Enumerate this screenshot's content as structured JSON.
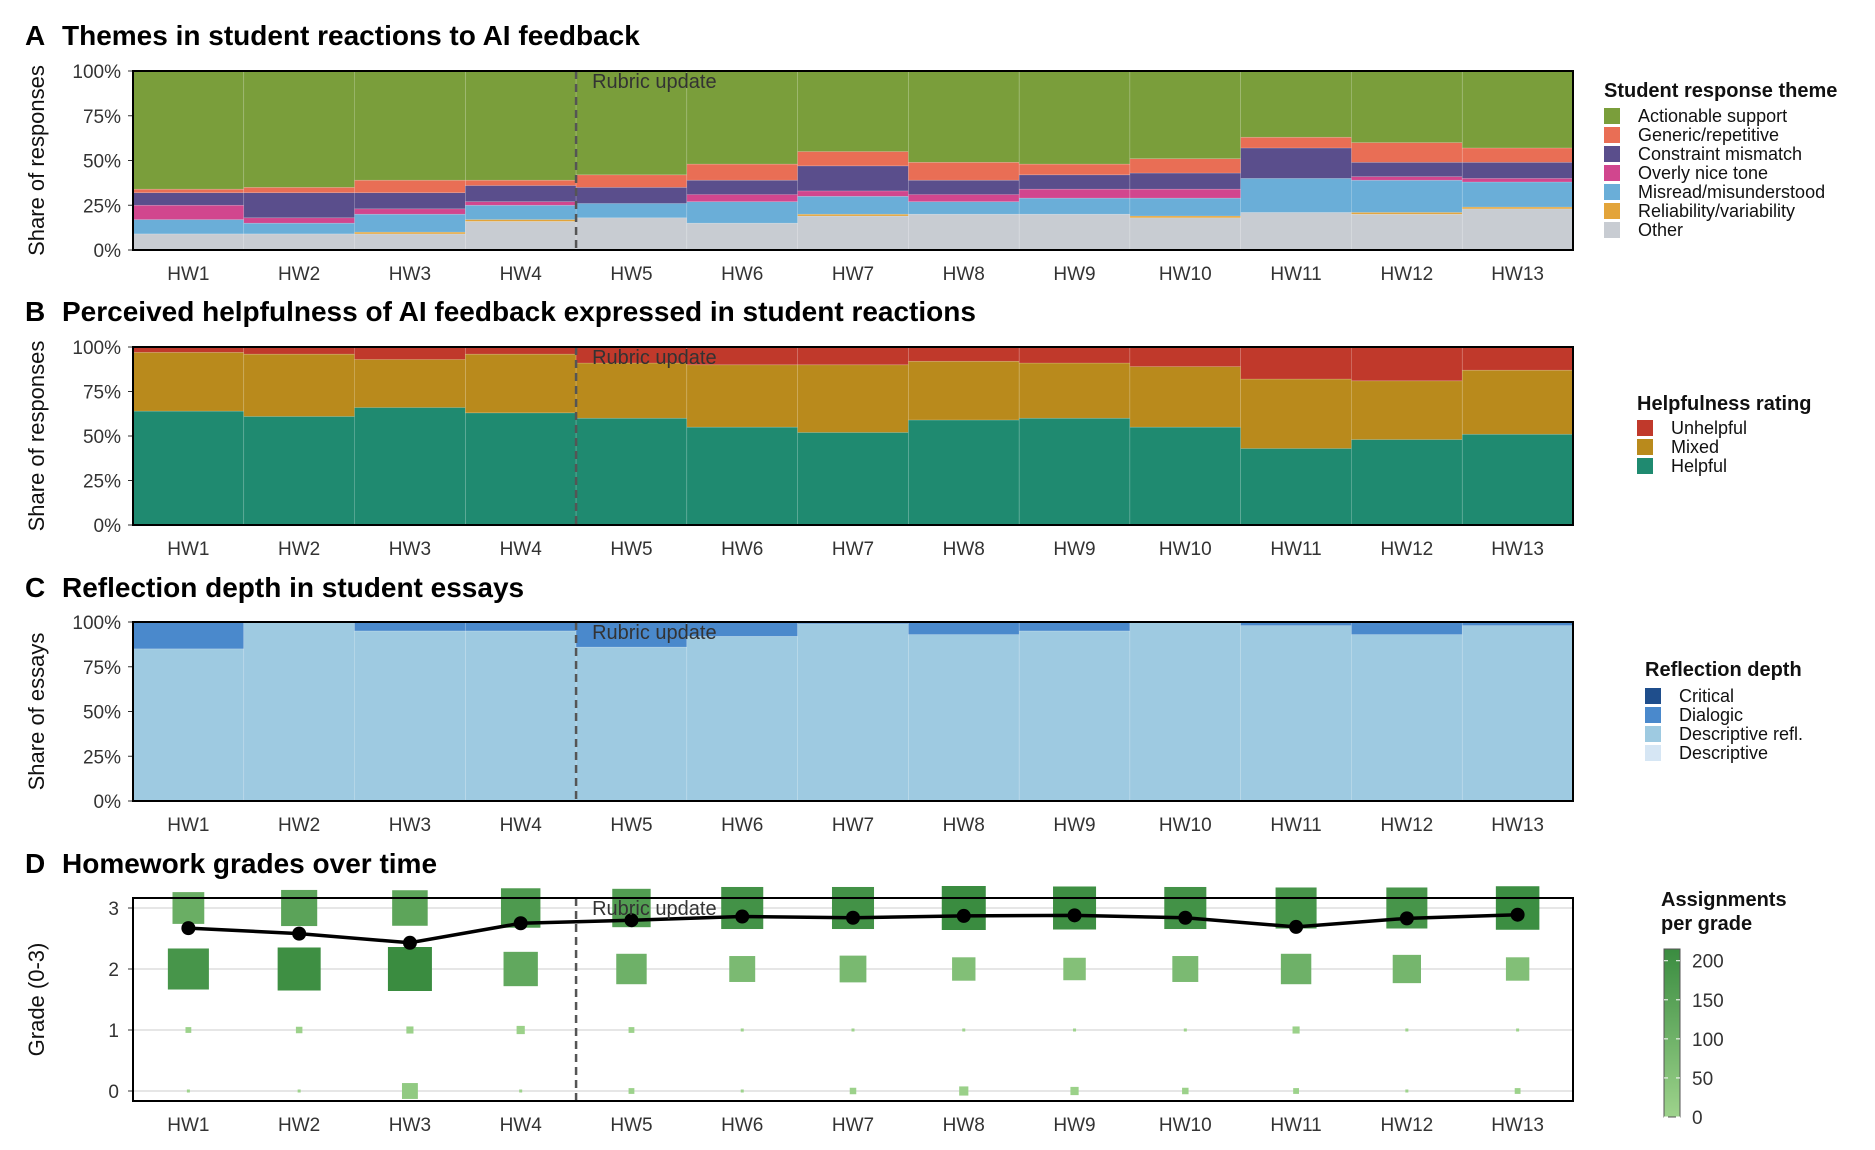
{
  "chart_data": [
    {
      "panel": "A",
      "title": "Themes in student reactions to AI feedback",
      "type": "bar",
      "stacked": true,
      "ylabel": "Share of responses",
      "yticks": [
        "0%",
        "25%",
        "50%",
        "75%",
        "100%"
      ],
      "ylim": [
        0,
        100
      ],
      "annotation": "Rubric update",
      "annotation_after": "HW4",
      "categories": [
        "HW1",
        "HW2",
        "HW3",
        "HW4",
        "HW5",
        "HW6",
        "HW7",
        "HW8",
        "HW9",
        "HW10",
        "HW11",
        "HW12",
        "HW13"
      ],
      "legend_title": "Student response theme",
      "legend_position": "right",
      "series": [
        {
          "name": "Other",
          "color": "#c8ccd2",
          "values": [
            9,
            9,
            9,
            16,
            18,
            15,
            19,
            20,
            20,
            18,
            21,
            20,
            23
          ]
        },
        {
          "name": "Reliability/variability",
          "color": "#e3a43a",
          "values": [
            0,
            0,
            1,
            1,
            0,
            0,
            1,
            0,
            0,
            1,
            0,
            1,
            1
          ]
        },
        {
          "name": "Misread/misunderstood",
          "color": "#6aaed8",
          "values": [
            8,
            6,
            10,
            8,
            8,
            12,
            10,
            7,
            9,
            10,
            19,
            18,
            14
          ]
        },
        {
          "name": "Overly nice tone",
          "color": "#d1468e",
          "values": [
            8,
            3,
            3,
            2,
            0,
            4,
            3,
            4,
            5,
            5,
            0,
            2,
            2
          ]
        },
        {
          "name": "Constraint mismatch",
          "color": "#5a4e8c",
          "values": [
            7,
            14,
            9,
            9,
            9,
            8,
            14,
            8,
            8,
            9,
            17,
            8,
            9
          ]
        },
        {
          "name": "Generic/repetitive",
          "color": "#e96e55",
          "values": [
            2,
            3,
            7,
            3,
            7,
            9,
            8,
            10,
            6,
            8,
            6,
            11,
            8
          ]
        },
        {
          "name": "Actionable support",
          "color": "#7a9e3b",
          "values": [
            66,
            65,
            61,
            61,
            58,
            52,
            45,
            51,
            52,
            49,
            37,
            40,
            43
          ]
        }
      ]
    },
    {
      "panel": "B",
      "title": "Perceived helpfulness of AI feedback expressed in student reactions",
      "type": "bar",
      "stacked": true,
      "ylabel": "Share of responses",
      "yticks": [
        "0%",
        "25%",
        "50%",
        "75%",
        "100%"
      ],
      "ylim": [
        0,
        100
      ],
      "annotation": "Rubric update",
      "annotation_after": "HW4",
      "categories": [
        "HW1",
        "HW2",
        "HW3",
        "HW4",
        "HW5",
        "HW6",
        "HW7",
        "HW8",
        "HW9",
        "HW10",
        "HW11",
        "HW12",
        "HW13"
      ],
      "legend_title": "Helpfulness rating",
      "legend_position": "right",
      "series": [
        {
          "name": "Helpful",
          "color": "#1f8a70",
          "values": [
            64,
            61,
            66,
            63,
            60,
            55,
            52,
            59,
            60,
            55,
            43,
            48,
            51
          ]
        },
        {
          "name": "Mixed",
          "color": "#b98a1c",
          "values": [
            33,
            35,
            27,
            33,
            31,
            35,
            38,
            33,
            31,
            34,
            39,
            33,
            36
          ]
        },
        {
          "name": "Unhelpful",
          "color": "#c0392b",
          "values": [
            3,
            4,
            7,
            4,
            9,
            10,
            10,
            8,
            9,
            11,
            18,
            19,
            13
          ]
        }
      ]
    },
    {
      "panel": "C",
      "title": "Reflection depth in student essays",
      "type": "bar",
      "stacked": true,
      "ylabel": "Share of essays",
      "yticks": [
        "0%",
        "25%",
        "50%",
        "75%",
        "100%"
      ],
      "ylim": [
        0,
        100
      ],
      "annotation": "Rubric update",
      "annotation_after": "HW4",
      "categories": [
        "HW1",
        "HW2",
        "HW3",
        "HW4",
        "HW5",
        "HW6",
        "HW7",
        "HW8",
        "HW9",
        "HW10",
        "HW11",
        "HW12",
        "HW13"
      ],
      "legend_title": "Reflection depth",
      "legend_position": "right",
      "series": [
        {
          "name": "Descriptive",
          "color": "#d6e6f4",
          "values": [
            0,
            0,
            0,
            0,
            0,
            0,
            0,
            0,
            0,
            0,
            0,
            0,
            0
          ]
        },
        {
          "name": "Descriptive refl.",
          "color": "#9ecae1",
          "values": [
            85,
            100,
            95,
            95,
            86,
            92,
            99,
            93,
            95,
            100,
            98,
            93,
            98
          ]
        },
        {
          "name": "Dialogic",
          "color": "#4a89cc",
          "values": [
            15,
            0,
            5,
            5,
            14,
            8,
            1,
            7,
            5,
            0,
            2,
            7,
            2
          ]
        },
        {
          "name": "Critical",
          "color": "#1f4e8c",
          "values": [
            0,
            0,
            0,
            0,
            0,
            0,
            0,
            0,
            0,
            0,
            0,
            0,
            0
          ]
        }
      ]
    },
    {
      "panel": "D",
      "title": "Homework grades over time",
      "type": "scatter",
      "ylabel": "Grade (0-3)",
      "yticks": [
        "0",
        "1",
        "2",
        "3"
      ],
      "ylim": [
        0,
        3
      ],
      "annotation": "Rubric update",
      "annotation_after": "HW4",
      "categories": [
        "HW1",
        "HW2",
        "HW3",
        "HW4",
        "HW5",
        "HW6",
        "HW7",
        "HW8",
        "HW9",
        "HW10",
        "HW11",
        "HW12",
        "HW13"
      ],
      "legend_title": "Assignments per grade",
      "legend_ticks": [
        0,
        50,
        100,
        150,
        200
      ],
      "legend_position": "right",
      "counts": {
        "grade3": [
          120,
          155,
          150,
          185,
          175,
          210,
          210,
          230,
          220,
          210,
          200,
          200,
          225
        ],
        "grade2": [
          200,
          220,
          230,
          140,
          110,
          80,
          85,
          65,
          60,
          80,
          110,
          95,
          65
        ],
        "grade1": [
          4,
          5,
          6,
          8,
          4,
          1,
          1,
          1,
          1,
          1,
          6,
          1,
          1
        ],
        "grade0": [
          1,
          1,
          30,
          1,
          4,
          1,
          5,
          10,
          8,
          5,
          4,
          1,
          4
        ]
      },
      "mean_grade": [
        2.67,
        2.58,
        2.43,
        2.75,
        2.8,
        2.86,
        2.84,
        2.87,
        2.88,
        2.84,
        2.69,
        2.83,
        2.89
      ]
    }
  ]
}
